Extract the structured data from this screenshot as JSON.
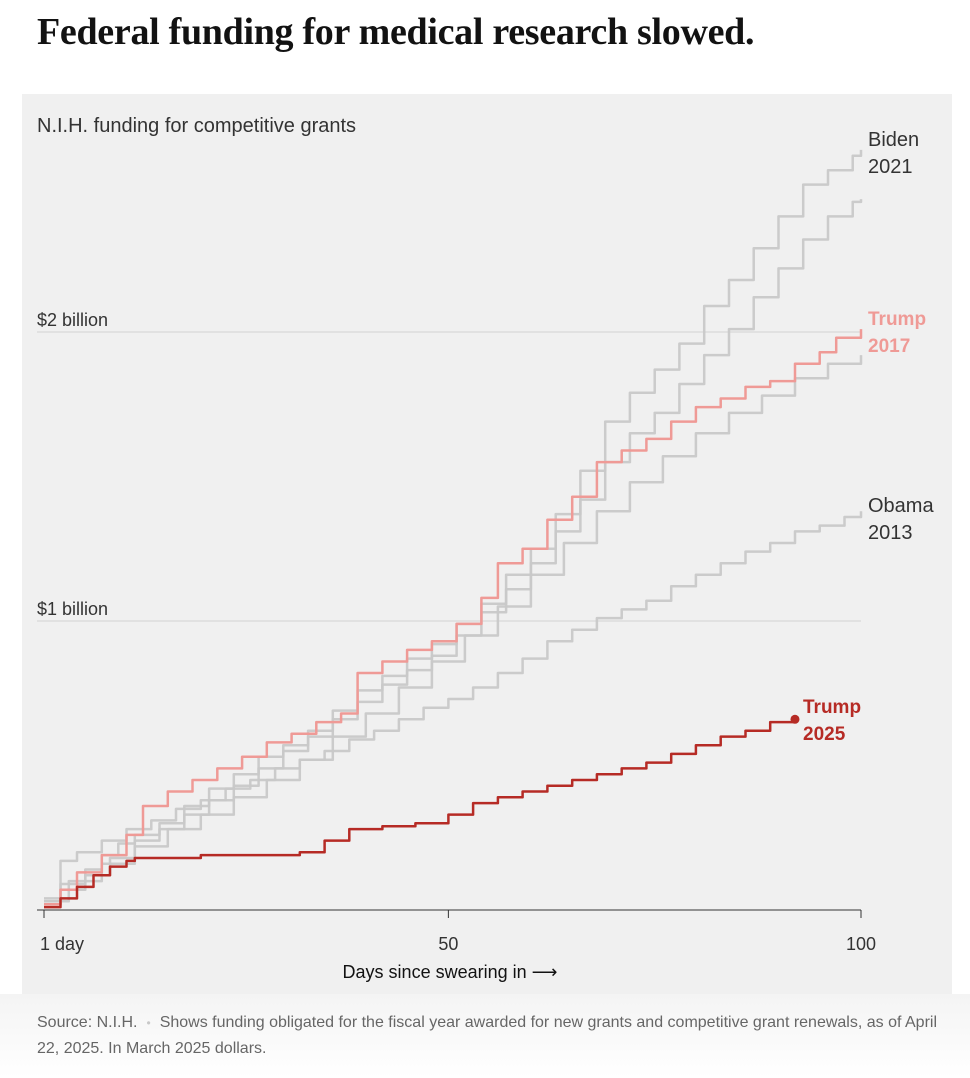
{
  "headline": "Federal funding for medical research slowed.",
  "chart_data": {
    "type": "line",
    "title": "N.I.H. funding for competitive grants",
    "xlabel": "Days since swearing in ⟶",
    "ylabel": "",
    "xlim": [
      1,
      100
    ],
    "ylim": [
      0,
      2.7
    ],
    "x_ticks": [
      {
        "value": 1,
        "label": "1 day"
      },
      {
        "value": 50,
        "label": "50"
      },
      {
        "value": 100,
        "label": "100"
      }
    ],
    "y_gridlines": [
      {
        "value": 1,
        "label": "$1 billion"
      },
      {
        "value": 2,
        "label": "$2 billion"
      }
    ],
    "series": [
      {
        "name": "Biden 2021",
        "label_lines": [
          "Biden",
          "2021"
        ],
        "color": "#c8c8c8",
        "emphasis": "background",
        "x": [
          1,
          3,
          6,
          8,
          10,
          12,
          15,
          18,
          21,
          24,
          27,
          30,
          33,
          36,
          39,
          42,
          45,
          48,
          51,
          54,
          57,
          60,
          63,
          66,
          69,
          72,
          75,
          78,
          81,
          84,
          87,
          90,
          93,
          96,
          99,
          100
        ],
        "y": [
          0.03,
          0.09,
          0.14,
          0.19,
          0.23,
          0.26,
          0.3,
          0.36,
          0.42,
          0.47,
          0.53,
          0.57,
          0.62,
          0.69,
          0.76,
          0.81,
          0.87,
          0.92,
          0.99,
          1.06,
          1.16,
          1.25,
          1.37,
          1.52,
          1.69,
          1.79,
          1.87,
          1.96,
          2.09,
          2.18,
          2.29,
          2.4,
          2.51,
          2.56,
          2.61,
          2.63
        ]
      },
      {
        "name": "Gray 2",
        "color": "#c8c8c8",
        "emphasis": "background",
        "x": [
          1,
          3,
          6,
          9,
          12,
          15,
          18,
          21,
          24,
          27,
          30,
          33,
          36,
          39,
          42,
          45,
          48,
          51,
          54,
          57,
          60,
          63,
          66,
          69,
          72,
          75,
          78,
          81,
          84,
          87,
          90,
          93,
          96,
          99,
          100
        ],
        "y": [
          0.02,
          0.07,
          0.12,
          0.18,
          0.24,
          0.28,
          0.33,
          0.38,
          0.43,
          0.49,
          0.55,
          0.6,
          0.66,
          0.72,
          0.78,
          0.83,
          0.88,
          0.95,
          1.03,
          1.11,
          1.2,
          1.31,
          1.42,
          1.55,
          1.65,
          1.72,
          1.82,
          1.92,
          2.01,
          2.12,
          2.22,
          2.32,
          2.4,
          2.45,
          2.46
        ]
      },
      {
        "name": "Gray 3",
        "color": "#c8c8c8",
        "emphasis": "background",
        "x": [
          1,
          4,
          8,
          12,
          16,
          20,
          24,
          28,
          32,
          36,
          40,
          44,
          48,
          52,
          56,
          60,
          64,
          68,
          72,
          76,
          80,
          84,
          88,
          92,
          96,
          100
        ],
        "y": [
          0.03,
          0.1,
          0.16,
          0.22,
          0.28,
          0.33,
          0.39,
          0.45,
          0.52,
          0.6,
          0.68,
          0.77,
          0.86,
          0.95,
          1.05,
          1.16,
          1.27,
          1.38,
          1.48,
          1.57,
          1.65,
          1.72,
          1.78,
          1.84,
          1.89,
          1.92
        ]
      },
      {
        "name": "Obama 2013",
        "label_lines": [
          "Obama",
          "2013"
        ],
        "color": "#c8c8c8",
        "emphasis": "background",
        "x": [
          1,
          3,
          5,
          8,
          11,
          14,
          17,
          20,
          23,
          26,
          29,
          32,
          35,
          38,
          41,
          44,
          47,
          50,
          53,
          56,
          59,
          62,
          65,
          68,
          71,
          74,
          77,
          80,
          83,
          86,
          89,
          92,
          95,
          98,
          100
        ],
        "y": [
          0.04,
          0.17,
          0.2,
          0.24,
          0.28,
          0.31,
          0.35,
          0.38,
          0.42,
          0.45,
          0.49,
          0.52,
          0.55,
          0.59,
          0.62,
          0.66,
          0.7,
          0.73,
          0.77,
          0.82,
          0.87,
          0.93,
          0.97,
          1.01,
          1.04,
          1.07,
          1.12,
          1.16,
          1.2,
          1.24,
          1.27,
          1.31,
          1.33,
          1.36,
          1.38
        ]
      },
      {
        "name": "Trump 2017",
        "label_lines": [
          "Trump",
          "2017"
        ],
        "color": "#ef9a96",
        "emphasis": "medium",
        "x": [
          1,
          3,
          5,
          8,
          11,
          13,
          16,
          19,
          22,
          25,
          28,
          31,
          34,
          37,
          39,
          42,
          45,
          48,
          51,
          54,
          56,
          59,
          62,
          65,
          68,
          71,
          74,
          77,
          80,
          83,
          86,
          89,
          92,
          95,
          97,
          100
        ],
        "y": [
          0.02,
          0.07,
          0.13,
          0.19,
          0.26,
          0.36,
          0.41,
          0.45,
          0.49,
          0.53,
          0.58,
          0.61,
          0.65,
          0.68,
          0.82,
          0.86,
          0.9,
          0.93,
          0.99,
          1.08,
          1.2,
          1.25,
          1.35,
          1.43,
          1.55,
          1.59,
          1.63,
          1.69,
          1.74,
          1.77,
          1.81,
          1.83,
          1.89,
          1.93,
          1.98,
          2.01
        ]
      },
      {
        "name": "Trump 2025",
        "label_lines": [
          "Trump",
          "2025"
        ],
        "color": "#b62b25",
        "emphasis": "strong",
        "end_marker": true,
        "x": [
          1,
          3,
          5,
          7,
          9,
          11,
          12,
          20,
          28,
          32,
          35,
          38,
          42,
          46,
          50,
          53,
          56,
          59,
          62,
          65,
          68,
          71,
          74,
          77,
          80,
          83,
          86,
          89,
          92
        ],
        "y": [
          0.01,
          0.04,
          0.08,
          0.12,
          0.15,
          0.17,
          0.18,
          0.19,
          0.19,
          0.2,
          0.24,
          0.28,
          0.29,
          0.3,
          0.33,
          0.37,
          0.39,
          0.41,
          0.43,
          0.45,
          0.47,
          0.49,
          0.51,
          0.54,
          0.57,
          0.6,
          0.62,
          0.65,
          0.66
        ]
      }
    ]
  },
  "note": {
    "source": "Source: N.I.H.",
    "separator": "•",
    "text": "Shows funding obligated for the fiscal year awarded for new grants and competitive grant renewals, as of April 22, 2025. In March 2025 dollars."
  }
}
